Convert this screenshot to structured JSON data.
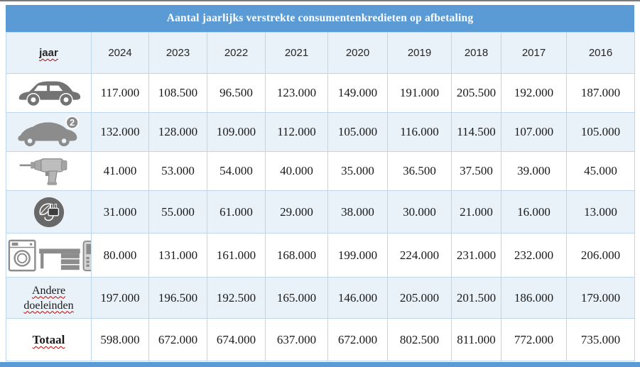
{
  "title": "Aantal jaarlijks verstrekte consumentenkredieten op afbetaling",
  "table": {
    "header": {
      "label": "jaar",
      "years": [
        "2024",
        "2023",
        "2022",
        "2021",
        "2020",
        "2019",
        "2018",
        "2017",
        "2016"
      ]
    },
    "rows": [
      {
        "icon": "new-car-icon",
        "category": "nieuwe wagen",
        "values": [
          "117.000",
          "108.500",
          "96.500",
          "123.000",
          "149.000",
          "191.000",
          "205.500",
          "192.000",
          "187.000"
        ]
      },
      {
        "icon": "used-car-icon",
        "badge": "2",
        "category": "tweedehandswagen",
        "values": [
          "132.000",
          "128.000",
          "109.000",
          "112.000",
          "105.000",
          "116.000",
          "114.500",
          "107.000",
          "105.000"
        ]
      },
      {
        "icon": "drill-icon",
        "category": "verbouwing",
        "values": [
          "41.000",
          "53.000",
          "54.000",
          "40.000",
          "35.000",
          "36.500",
          "37.500",
          "39.000",
          "45.000"
        ]
      },
      {
        "icon": "eco-plug-icon",
        "category": "groene energie",
        "values": [
          "31.000",
          "55.000",
          "61.000",
          "29.000",
          "38.000",
          "30.000",
          "21.000",
          "16.000",
          "13.000"
        ]
      },
      {
        "icon": "appliances-icon",
        "category": "huishoudtoestellen en meubelen",
        "values": [
          "80.000",
          "131.000",
          "161.000",
          "168.000",
          "199.000",
          "224.000",
          "231.000",
          "232.000",
          "206.000"
        ]
      },
      {
        "label": "Andere doeleinden",
        "values": [
          "197.000",
          "196.500",
          "192.500",
          "165.000",
          "146.000",
          "205.000",
          "201.500",
          "186.000",
          "179.000"
        ]
      },
      {
        "label": "Totaal",
        "bold": true,
        "values": [
          "598.000",
          "672.000",
          "674.000",
          "637.000",
          "672.000",
          "802.500",
          "811.000",
          "772.000",
          "735.000"
        ]
      }
    ]
  },
  "colors": {
    "header_blue": "#5b9bd5",
    "row_alt": "#e9f1f9",
    "border_blue": "#bdd6ee",
    "text": "#1a1a1a",
    "squiggle": "#c00000",
    "icon_gray": "#808080",
    "bar_blue": "#5b9bd5"
  }
}
